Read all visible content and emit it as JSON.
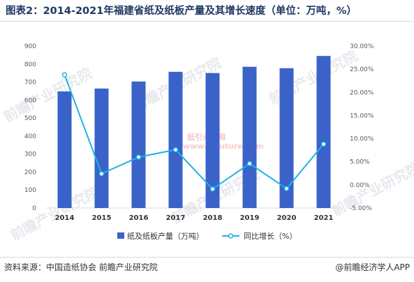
{
  "header": {
    "title": "图表2：2014-2021年福建省纸及纸板产量及其增长速度（单位：万吨，%）"
  },
  "footer": {
    "source": "资料来源：中国造纸协会 前瞻产业研究院",
    "credit": "@前瞻经济学人APP"
  },
  "watermarks": {
    "brand": "前瞻产业研究院",
    "center": "纸引未来网",
    "center_url": "www.zyfuture.com"
  },
  "chart_data": {
    "type": "bar",
    "categories": [
      "2014",
      "2015",
      "2016",
      "2017",
      "2018",
      "2019",
      "2020",
      "2021"
    ],
    "series": [
      {
        "name": "纸及纸板产量（万吨）",
        "type": "bar",
        "axis": "left",
        "color": "#3a62c9",
        "values": [
          648,
          664,
          703,
          757,
          750,
          785,
          777,
          845
        ]
      },
      {
        "name": "同比增长（%）",
        "type": "line",
        "axis": "right",
        "color": "#1fb2e6",
        "values": [
          23.8,
          2.4,
          6.0,
          7.6,
          -0.9,
          4.6,
          -0.8,
          8.8
        ]
      }
    ],
    "y_left": {
      "min": 0,
      "max": 900,
      "ticks": [
        "0",
        "100",
        "200",
        "300",
        "400",
        "500",
        "600",
        "700",
        "800",
        "900"
      ]
    },
    "y_right": {
      "min": -5,
      "max": 30,
      "ticks": [
        "-5.00%",
        "0.00%",
        "5.00%",
        "10.00%",
        "15.00%",
        "20.00%",
        "25.00%",
        "30.00%"
      ]
    },
    "grid": false,
    "legend_position": "bottom"
  }
}
